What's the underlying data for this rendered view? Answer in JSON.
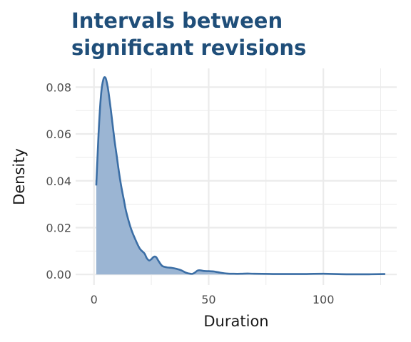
{
  "chart_data": {
    "type": "area",
    "title_lines": [
      "Intervals between",
      "significant revisions"
    ],
    "xlabel": "Duration",
    "ylabel": "Density",
    "xlim": [
      -8,
      132
    ],
    "ylim": [
      -0.0045,
      0.088
    ],
    "x_ticks": [
      0,
      50,
      100
    ],
    "x_tick_labels": [
      "0",
      "50",
      "100"
    ],
    "x_minor_ticks": [
      25,
      75,
      125
    ],
    "y_ticks": [
      0,
      0.02,
      0.04,
      0.06,
      0.08
    ],
    "y_tick_labels": [
      "0.00",
      "0.02",
      "0.04",
      "0.06",
      "0.08"
    ],
    "y_minor_ticks": [
      0.01,
      0.03,
      0.05,
      0.07
    ],
    "grid": true,
    "legend": "none",
    "colors": {
      "line": "#3b6ea5",
      "fill": "#9bb5d3",
      "grid": "#ebebeb",
      "title": "#1f4e79"
    },
    "series": [
      {
        "x": [
          1,
          2,
          3,
          4,
          5,
          6,
          7,
          8,
          9,
          10,
          11,
          12,
          13,
          14,
          16,
          18,
          20,
          22,
          23,
          24,
          25,
          26,
          27,
          28,
          29,
          30,
          32,
          34,
          36,
          38,
          40,
          42,
          43,
          44,
          45,
          46,
          48,
          50,
          52,
          55,
          58,
          61,
          64,
          67,
          70,
          80,
          90,
          100,
          110,
          120,
          127
        ],
        "y": [
          0.038,
          0.06,
          0.076,
          0.083,
          0.084,
          0.08,
          0.073,
          0.065,
          0.057,
          0.05,
          0.043,
          0.037,
          0.032,
          0.027,
          0.02,
          0.015,
          0.011,
          0.009,
          0.007,
          0.006,
          0.0065,
          0.0075,
          0.0075,
          0.006,
          0.0045,
          0.0035,
          0.003,
          0.0028,
          0.0024,
          0.0018,
          0.0008,
          0.0003,
          0.0003,
          0.0008,
          0.0016,
          0.0018,
          0.0015,
          0.0014,
          0.0013,
          0.0008,
          0.0004,
          0.0003,
          0.0003,
          0.0004,
          0.0003,
          0.0002,
          0.0002,
          0.0003,
          0.0001,
          0.0001,
          0.0002
        ]
      }
    ]
  }
}
